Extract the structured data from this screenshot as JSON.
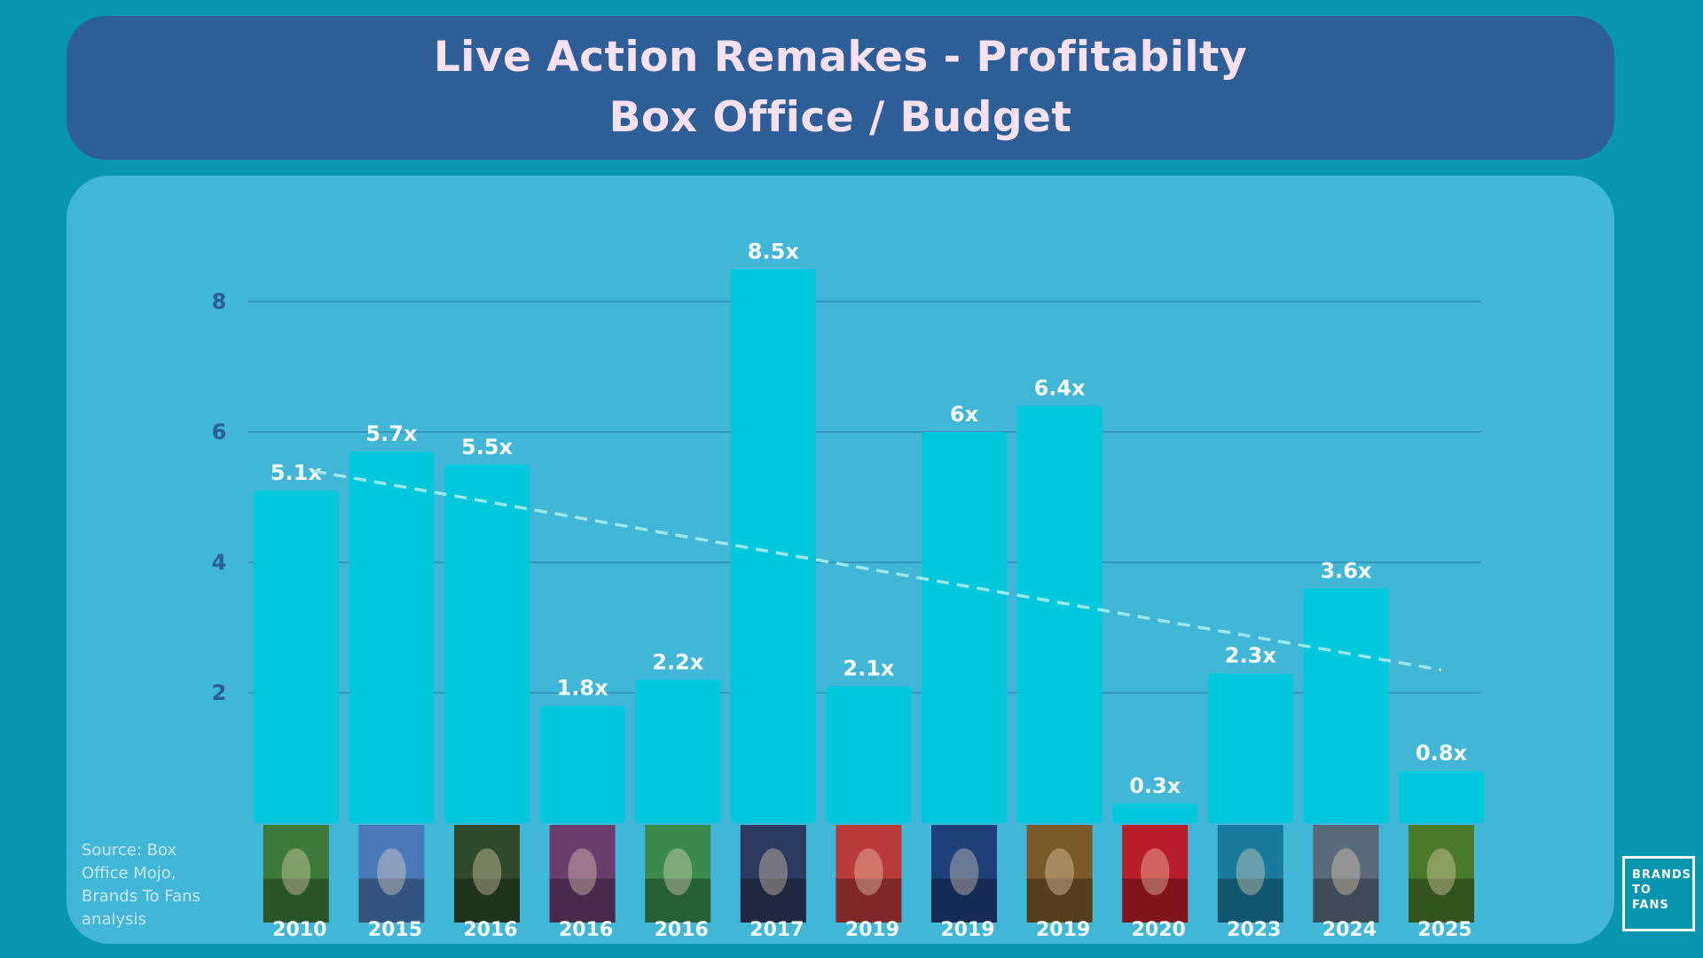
{
  "title": {
    "line1": "Live Action Remakes - Profitabilty",
    "line2": "Box Office / Budget"
  },
  "source_note": "Source:  Box Office Mojo, Brands To Fans analysis",
  "logo": {
    "lines": [
      "BRANDS",
      "TO",
      "FANS"
    ]
  },
  "colors": {
    "background": "#0795b0",
    "title_panel": "#2e5e98",
    "chart_panel": "#42b6d6",
    "bar": "#00c8dc",
    "trendline": "#9be8ec",
    "axis_text": "#2d5d95",
    "label_text": "#f4fbff"
  },
  "chart_data": {
    "type": "bar",
    "title": "Live Action Remakes - Profitabilty",
    "subtitle": "Box Office / Budget",
    "categories": [
      "2010",
      "2015",
      "2016",
      "2016",
      "2016",
      "2017",
      "2019",
      "2019",
      "2019",
      "2020",
      "2023",
      "2024",
      "2025"
    ],
    "poster_icons": [
      "alice-in-wonderland-poster-icon",
      "cinderella-poster-icon",
      "jungle-book-poster-icon",
      "alice-through-the-looking-glass-poster-icon",
      "petes-dragon-poster-icon",
      "beauty-and-the-beast-poster-icon",
      "dumbo-poster-icon",
      "aladdin-poster-icon",
      "lion-king-poster-icon",
      "mulan-poster-icon",
      "little-mermaid-poster-icon",
      "mufasa-poster-icon",
      "snow-white-poster-icon"
    ],
    "values": [
      5.1,
      5.7,
      5.5,
      1.8,
      2.2,
      8.5,
      2.1,
      6.0,
      6.4,
      0.3,
      2.3,
      3.6,
      0.8
    ],
    "data_labels": [
      "5.1x",
      "5.7x",
      "5.5x",
      "1.8x",
      "2.2x",
      "8.5x",
      "2.1x",
      "6x",
      "6.4x",
      "0.3x",
      "2.3x",
      "3.6x",
      "0.8x"
    ],
    "yticks": [
      2,
      4,
      6,
      8
    ],
    "ylim": [
      0,
      8.5
    ],
    "grid": true,
    "trendline": {
      "style": "dashed",
      "start": 5.4,
      "end": 2.35
    }
  }
}
